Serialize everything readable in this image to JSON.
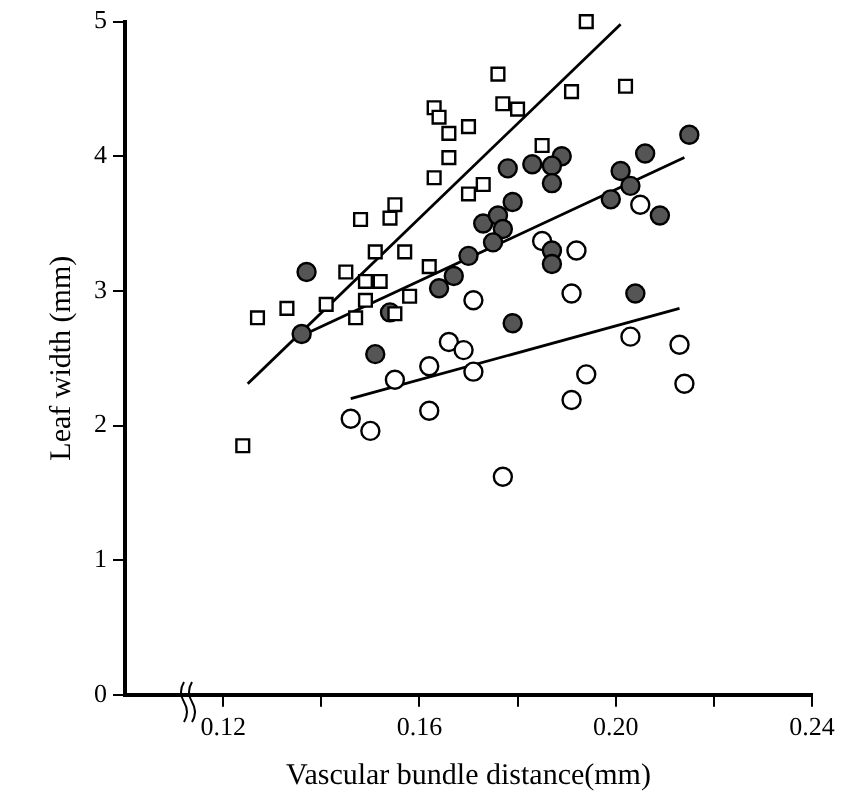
{
  "chart_data": {
    "type": "scatter",
    "xlabel": "Vascular bundle distance(mm)",
    "ylabel": "Leaf width (mm)",
    "xlim": [
      0.1,
      0.24
    ],
    "xticks": [
      {
        "value": 0.12,
        "label": "0.12"
      },
      {
        "value": 0.14,
        "label": null
      },
      {
        "value": 0.16,
        "label": "0.16"
      },
      {
        "value": 0.18,
        "label": null
      },
      {
        "value": 0.2,
        "label": "0.20"
      },
      {
        "value": 0.22,
        "label": null
      },
      {
        "value": 0.24,
        "label": "0.24"
      }
    ],
    "ylim": [
      0,
      5
    ],
    "yticks": [
      0,
      1,
      2,
      3,
      4,
      5
    ],
    "grid": false,
    "legend": false,
    "series": [
      {
        "type": "scatter",
        "marker": "square",
        "color": "#ffffff",
        "x": [
          0.124,
          0.127,
          0.133,
          0.141,
          0.147,
          0.145,
          0.149,
          0.152,
          0.149,
          0.155,
          0.158,
          0.151,
          0.157,
          0.162,
          0.148,
          0.154,
          0.155,
          0.163,
          0.166,
          0.163,
          0.164,
          0.166,
          0.17,
          0.17,
          0.194,
          0.176,
          0.177,
          0.18,
          0.191,
          0.202,
          0.173,
          0.185
        ],
        "values": [
          1.85,
          2.8,
          2.87,
          2.9,
          2.8,
          3.14,
          3.07,
          3.07,
          2.93,
          2.83,
          2.96,
          3.29,
          3.29,
          3.18,
          3.53,
          3.54,
          3.64,
          3.84,
          3.99,
          4.36,
          4.29,
          4.17,
          4.22,
          3.72,
          5.0,
          4.61,
          4.39,
          4.35,
          4.48,
          4.52,
          3.79,
          4.08
        ]
      },
      {
        "type": "scatter",
        "marker": "circle",
        "color": "#555555",
        "x": [
          0.137,
          0.136,
          0.151,
          0.154,
          0.164,
          0.167,
          0.17,
          0.178,
          0.183,
          0.189,
          0.187,
          0.187,
          0.179,
          0.173,
          0.176,
          0.177,
          0.175,
          0.187,
          0.187,
          0.179,
          0.201,
          0.203,
          0.199,
          0.206,
          0.209,
          0.215,
          0.204
        ],
        "values": [
          3.14,
          2.68,
          2.53,
          2.84,
          3.02,
          3.11,
          3.26,
          3.91,
          3.94,
          4.0,
          3.93,
          3.8,
          3.66,
          3.5,
          3.56,
          3.46,
          3.36,
          3.3,
          3.2,
          2.76,
          3.89,
          3.78,
          3.68,
          4.02,
          3.56,
          4.16,
          2.98
        ]
      },
      {
        "type": "scatter",
        "marker": "circle",
        "color": "#ffffff",
        "x": [
          0.185,
          0.192,
          0.205,
          0.171,
          0.191,
          0.166,
          0.169,
          0.162,
          0.171,
          0.203,
          0.213,
          0.194,
          0.214,
          0.155,
          0.146,
          0.15,
          0.162,
          0.177,
          0.191
        ],
        "values": [
          3.37,
          3.3,
          3.64,
          2.93,
          2.98,
          2.62,
          2.56,
          2.44,
          2.4,
          2.66,
          2.6,
          2.38,
          2.31,
          2.34,
          2.05,
          1.96,
          2.11,
          1.62,
          2.19
        ]
      },
      {
        "type": "line",
        "marker": "none",
        "color": "#000000",
        "x": [
          0.125,
          0.201
        ],
        "values": [
          2.31,
          4.98
        ]
      },
      {
        "type": "line",
        "marker": "none",
        "color": "#000000",
        "x": [
          0.135,
          0.214
        ],
        "values": [
          2.65,
          3.99
        ]
      },
      {
        "type": "line",
        "marker": "none",
        "color": "#000000",
        "x": [
          0.146,
          0.213
        ],
        "values": [
          2.2,
          2.87
        ]
      }
    ]
  }
}
